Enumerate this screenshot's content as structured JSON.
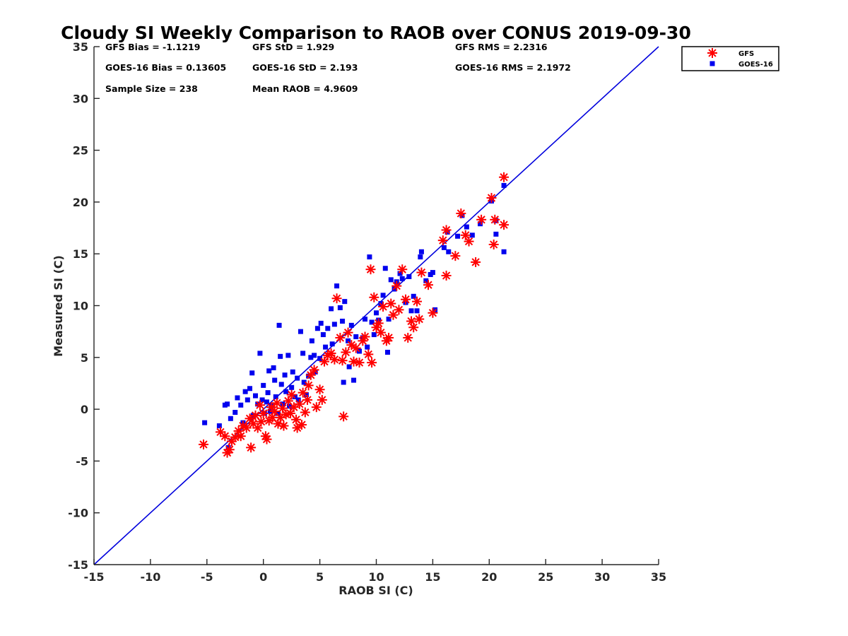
{
  "chart_data": {
    "type": "scatter",
    "title": "Cloudy SI Weekly Comparison to RAOB over CONUS 2019-09-30",
    "xlabel": "RAOB SI (C)",
    "ylabel": "Measured SI (C)",
    "xlim": [
      -15,
      35
    ],
    "ylim": [
      -15,
      35
    ],
    "xticks": [
      -15,
      -10,
      -5,
      0,
      5,
      10,
      15,
      20,
      25,
      30,
      35
    ],
    "yticks": [
      -15,
      -10,
      -5,
      0,
      5,
      10,
      15,
      20,
      25,
      30,
      35
    ],
    "grid": false,
    "legend_position": "outside-top-right",
    "reference_line": {
      "from": [
        -15,
        -15
      ],
      "to": [
        35,
        35
      ],
      "color": "#0000dd"
    },
    "stats": [
      [
        "GFS Bias = -1.1219",
        "GFS StD = 1.929",
        "GFS RMS = 2.2316"
      ],
      [
        "GOES-16 Bias = 0.13605",
        "GOES-16 StD = 2.193",
        "GOES-16 RMS = 2.1972"
      ],
      [
        "Sample Size = 238",
        "Mean RAOB = 4.9609",
        ""
      ]
    ],
    "series": [
      {
        "name": "GFS",
        "marker": "asterisk",
        "color": "#ff0000",
        "points": [
          [
            -5.3,
            -3.4
          ],
          [
            -3.8,
            -2.2
          ],
          [
            -3.4,
            -2.6
          ],
          [
            -3.2,
            -4.2
          ],
          [
            -3.0,
            -3.9
          ],
          [
            -2.8,
            -3.1
          ],
          [
            -2.5,
            -2.7
          ],
          [
            -2.2,
            -2.1
          ],
          [
            -2.0,
            -2.6
          ],
          [
            -1.8,
            -1.6
          ],
          [
            -1.5,
            -1.8
          ],
          [
            -1.2,
            -0.9
          ],
          [
            -1.1,
            -3.7
          ],
          [
            -0.9,
            -1.4
          ],
          [
            -0.7,
            -0.6
          ],
          [
            -0.5,
            -1.8
          ],
          [
            -0.3,
            0.4
          ],
          [
            -0.2,
            -1.2
          ],
          [
            0.0,
            -0.4
          ],
          [
            0.2,
            -2.6
          ],
          [
            0.3,
            -2.9
          ],
          [
            0.5,
            -1.1
          ],
          [
            0.7,
            0.2
          ],
          [
            0.8,
            -0.8
          ],
          [
            1.0,
            -0.2
          ],
          [
            1.2,
            0.6
          ],
          [
            1.3,
            -1.4
          ],
          [
            1.5,
            -0.8
          ],
          [
            1.7,
            0.1
          ],
          [
            1.8,
            -1.6
          ],
          [
            2.0,
            -0.5
          ],
          [
            2.2,
            0.8
          ],
          [
            2.4,
            -0.4
          ],
          [
            2.5,
            1.4
          ],
          [
            2.7,
            0.2
          ],
          [
            2.9,
            -1.0
          ],
          [
            3.0,
            -1.8
          ],
          [
            3.2,
            0.5
          ],
          [
            3.4,
            -1.5
          ],
          [
            3.5,
            1.6
          ],
          [
            3.7,
            -0.3
          ],
          [
            3.9,
            0.9
          ],
          [
            4.0,
            2.3
          ],
          [
            4.2,
            3.3
          ],
          [
            4.5,
            3.8
          ],
          [
            4.7,
            0.2
          ],
          [
            5.0,
            1.9
          ],
          [
            5.2,
            0.9
          ],
          [
            5.4,
            4.6
          ],
          [
            5.7,
            5.2
          ],
          [
            6.0,
            5.4
          ],
          [
            6.3,
            4.8
          ],
          [
            6.5,
            10.7
          ],
          [
            6.8,
            6.9
          ],
          [
            7.0,
            4.7
          ],
          [
            7.1,
            -0.7
          ],
          [
            7.3,
            5.5
          ],
          [
            7.5,
            7.4
          ],
          [
            7.8,
            6.2
          ],
          [
            8.0,
            4.6
          ],
          [
            8.2,
            5.9
          ],
          [
            8.5,
            4.5
          ],
          [
            8.8,
            6.6
          ],
          [
            9.0,
            7.0
          ],
          [
            9.3,
            5.3
          ],
          [
            9.5,
            13.5
          ],
          [
            9.6,
            4.5
          ],
          [
            9.8,
            10.8
          ],
          [
            10.0,
            7.9
          ],
          [
            10.2,
            8.3
          ],
          [
            10.4,
            7.4
          ],
          [
            10.6,
            9.9
          ],
          [
            10.9,
            6.6
          ],
          [
            11.1,
            6.9
          ],
          [
            11.3,
            10.2
          ],
          [
            11.5,
            9.1
          ],
          [
            11.8,
            11.9
          ],
          [
            12.0,
            9.6
          ],
          [
            12.3,
            13.5
          ],
          [
            12.6,
            10.6
          ],
          [
            12.8,
            6.9
          ],
          [
            13.1,
            8.5
          ],
          [
            13.3,
            7.9
          ],
          [
            13.6,
            10.4
          ],
          [
            13.8,
            8.7
          ],
          [
            14.0,
            13.2
          ],
          [
            14.6,
            12.0
          ],
          [
            15.0,
            9.3
          ],
          [
            15.9,
            16.3
          ],
          [
            16.2,
            17.3
          ],
          [
            16.2,
            12.9
          ],
          [
            17.0,
            14.8
          ],
          [
            17.5,
            18.9
          ],
          [
            17.9,
            16.8
          ],
          [
            18.2,
            16.2
          ],
          [
            18.8,
            14.2
          ],
          [
            19.3,
            18.3
          ],
          [
            20.2,
            20.4
          ],
          [
            20.4,
            15.9
          ],
          [
            20.5,
            18.3
          ],
          [
            21.3,
            17.8
          ],
          [
            21.3,
            22.4
          ]
        ]
      },
      {
        "name": "GOES-16",
        "marker": "square",
        "color": "#0000ee",
        "points": [
          [
            -5.2,
            -1.3
          ],
          [
            -3.9,
            -1.6
          ],
          [
            -3.4,
            0.4
          ],
          [
            -3.2,
            0.5
          ],
          [
            -3.1,
            -3.7
          ],
          [
            -2.9,
            -0.9
          ],
          [
            -2.5,
            -0.3
          ],
          [
            -2.3,
            1.1
          ],
          [
            -2.0,
            0.4
          ],
          [
            -1.8,
            -1.3
          ],
          [
            -1.6,
            1.7
          ],
          [
            -1.4,
            0.9
          ],
          [
            -1.2,
            2.0
          ],
          [
            -1.0,
            3.5
          ],
          [
            -0.9,
            -0.6
          ],
          [
            -0.7,
            1.3
          ],
          [
            -0.5,
            0.5
          ],
          [
            -0.3,
            5.4
          ],
          [
            -0.1,
            0.9
          ],
          [
            0.0,
            2.3
          ],
          [
            0.1,
            -0.4
          ],
          [
            0.3,
            0.7
          ],
          [
            0.4,
            1.6
          ],
          [
            0.5,
            3.7
          ],
          [
            0.6,
            -0.2
          ],
          [
            0.7,
            0.3
          ],
          [
            0.9,
            4.0
          ],
          [
            1.0,
            2.8
          ],
          [
            1.1,
            1.2
          ],
          [
            1.3,
            -0.4
          ],
          [
            1.4,
            8.1
          ],
          [
            1.5,
            5.1
          ],
          [
            1.6,
            2.4
          ],
          [
            1.7,
            0.5
          ],
          [
            1.9,
            3.3
          ],
          [
            2.0,
            1.7
          ],
          [
            2.2,
            5.2
          ],
          [
            2.3,
            0.3
          ],
          [
            2.5,
            2.1
          ],
          [
            2.6,
            3.6
          ],
          [
            2.8,
            1.2
          ],
          [
            3.0,
            3.0
          ],
          [
            3.1,
            0.9
          ],
          [
            3.3,
            7.5
          ],
          [
            3.5,
            5.4
          ],
          [
            3.6,
            2.6
          ],
          [
            3.8,
            1.4
          ],
          [
            4.0,
            3.2
          ],
          [
            4.2,
            5.0
          ],
          [
            4.3,
            6.6
          ],
          [
            4.5,
            5.2
          ],
          [
            4.6,
            3.6
          ],
          [
            4.8,
            7.8
          ],
          [
            5.0,
            4.9
          ],
          [
            5.1,
            8.3
          ],
          [
            5.3,
            7.2
          ],
          [
            5.5,
            6.0
          ],
          [
            5.7,
            7.8
          ],
          [
            6.0,
            9.7
          ],
          [
            6.1,
            6.3
          ],
          [
            6.3,
            8.2
          ],
          [
            6.5,
            11.9
          ],
          [
            6.8,
            9.8
          ],
          [
            7.0,
            8.5
          ],
          [
            7.1,
            2.6
          ],
          [
            7.2,
            10.4
          ],
          [
            7.5,
            6.6
          ],
          [
            7.6,
            4.1
          ],
          [
            7.8,
            8.1
          ],
          [
            8.0,
            2.8
          ],
          [
            8.2,
            7.0
          ],
          [
            8.5,
            5.6
          ],
          [
            8.8,
            6.9
          ],
          [
            9.0,
            8.7
          ],
          [
            9.2,
            6.0
          ],
          [
            9.4,
            14.7
          ],
          [
            9.6,
            8.4
          ],
          [
            9.8,
            7.2
          ],
          [
            10.0,
            9.3
          ],
          [
            10.2,
            8.6
          ],
          [
            10.4,
            10.2
          ],
          [
            10.6,
            11.0
          ],
          [
            10.8,
            13.6
          ],
          [
            11.0,
            5.5
          ],
          [
            11.1,
            8.7
          ],
          [
            11.3,
            12.5
          ],
          [
            11.6,
            11.6
          ],
          [
            11.8,
            12.3
          ],
          [
            12.1,
            13.1
          ],
          [
            12.3,
            12.6
          ],
          [
            12.6,
            10.3
          ],
          [
            12.9,
            12.8
          ],
          [
            13.1,
            9.5
          ],
          [
            13.3,
            10.9
          ],
          [
            13.6,
            9.5
          ],
          [
            13.9,
            14.7
          ],
          [
            14.0,
            15.2
          ],
          [
            14.4,
            12.4
          ],
          [
            14.8,
            13.0
          ],
          [
            15.0,
            13.2
          ],
          [
            15.2,
            9.6
          ],
          [
            16.0,
            15.6
          ],
          [
            16.3,
            17.1
          ],
          [
            16.4,
            15.2
          ],
          [
            17.2,
            16.7
          ],
          [
            17.6,
            18.7
          ],
          [
            18.0,
            17.6
          ],
          [
            18.5,
            16.8
          ],
          [
            19.2,
            17.9
          ],
          [
            20.2,
            20.1
          ],
          [
            20.6,
            18.2
          ],
          [
            20.6,
            16.9
          ],
          [
            21.3,
            21.6
          ],
          [
            21.3,
            15.2
          ]
        ]
      }
    ]
  }
}
